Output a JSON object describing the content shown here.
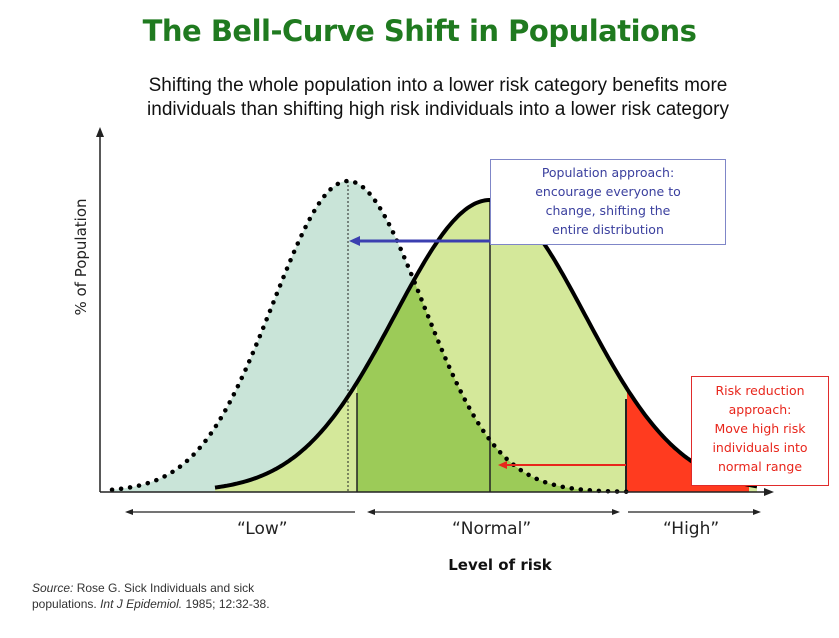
{
  "title": "The Bell-Curve Shift in Populations",
  "subtitle": "Shifting the whole population into a lower risk category benefits more individuals than shifting high risk individuals into a lower risk category",
  "colors": {
    "title": "#1f7a1f",
    "normal_curve_fill": "#d4e89a",
    "shifted_curve_fill": "#c9e4d8",
    "overlap_fill": "#9ccb58",
    "high_risk_fill": "#ff3b1f",
    "population_arrow": "#3b3fb0",
    "population_text": "#3a3f9e",
    "risk_arrow": "#e8261c",
    "risk_text": "#e8261c"
  },
  "population_box": {
    "lines": [
      "Population approach:",
      "encourage everyone to",
      "change, shifting the",
      "entire distribution"
    ]
  },
  "risk_box": {
    "lines": [
      "Risk reduction",
      "approach:",
      "Move high risk",
      "individuals into",
      "normal range"
    ]
  },
  "ylabel": "% of Population",
  "xlabel": "Level of risk",
  "categories": {
    "low": "“Low”",
    "normal": "“Normal”",
    "high": "“High”"
  },
  "source": {
    "label": "Source:",
    "text_1": "Rose G. Sick Individuals and sick",
    "text_2a": "populations.",
    "journal": "Int J Epidemiol.",
    "text_2b": "1985; 12:32-38."
  }
}
